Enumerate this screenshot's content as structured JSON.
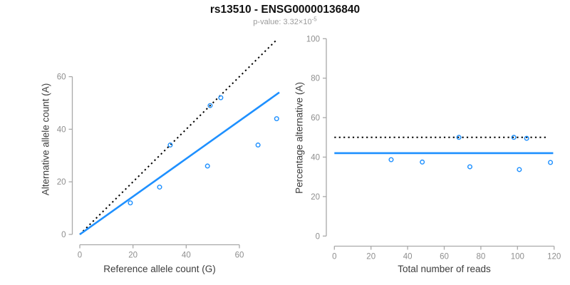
{
  "header": {
    "title": "rs13510 - ENSG00000136840",
    "pvalue_text": "p-value: 3.32×10",
    "pvalue_exponent": "-5"
  },
  "colors": {
    "accent_blue": "#1E90FF",
    "dotted_line": "#000000",
    "axis": "#a9a9a9",
    "tick_label": "#8e8e8e",
    "axis_title": "#3d3d3d",
    "subtitle": "#9b9b9b",
    "title": "#111111"
  },
  "chart_data": [
    {
      "id": "allele-counts-scatter",
      "type": "scatter",
      "xlabel": "Reference allele count (G)",
      "ylabel": "Alternative allele count (A)",
      "xticks": [
        0,
        20,
        40,
        60
      ],
      "yticks": [
        0,
        20,
        40,
        60
      ],
      "xlim": [
        0,
        75
      ],
      "ylim": [
        0,
        74
      ],
      "grid": false,
      "points": [
        [
          19,
          12
        ],
        [
          30,
          18
        ],
        [
          34,
          34
        ],
        [
          48,
          26
        ],
        [
          49,
          49
        ],
        [
          53,
          52
        ],
        [
          67,
          34
        ],
        [
          74,
          44
        ]
      ],
      "identity_line": {
        "style": "dotted",
        "color": "#000000",
        "slope": 1,
        "intercept": 0
      },
      "fit_line": {
        "style": "solid",
        "color": "#1E90FF",
        "slope": 0.72,
        "intercept": 0
      }
    },
    {
      "id": "percentage-vs-reads-scatter",
      "type": "scatter",
      "xlabel": "Total number of reads",
      "ylabel": "Percentage alternative (A)",
      "xticks": [
        0,
        20,
        40,
        60,
        80,
        100,
        120
      ],
      "yticks": [
        0,
        20,
        40,
        60,
        80,
        100
      ],
      "xlim": [
        0,
        120
      ],
      "ylim": [
        0,
        100
      ],
      "grid": false,
      "points": [
        [
          31,
          38.7
        ],
        [
          48,
          37.5
        ],
        [
          68,
          50
        ],
        [
          74,
          35.1
        ],
        [
          98,
          50
        ],
        [
          101,
          33.7
        ],
        [
          105,
          49.5
        ],
        [
          118,
          37.3
        ]
      ],
      "expected_line": {
        "style": "dotted",
        "color": "#000000",
        "y": 50
      },
      "observed_line": {
        "style": "solid",
        "color": "#1E90FF",
        "y": 42
      }
    }
  ]
}
